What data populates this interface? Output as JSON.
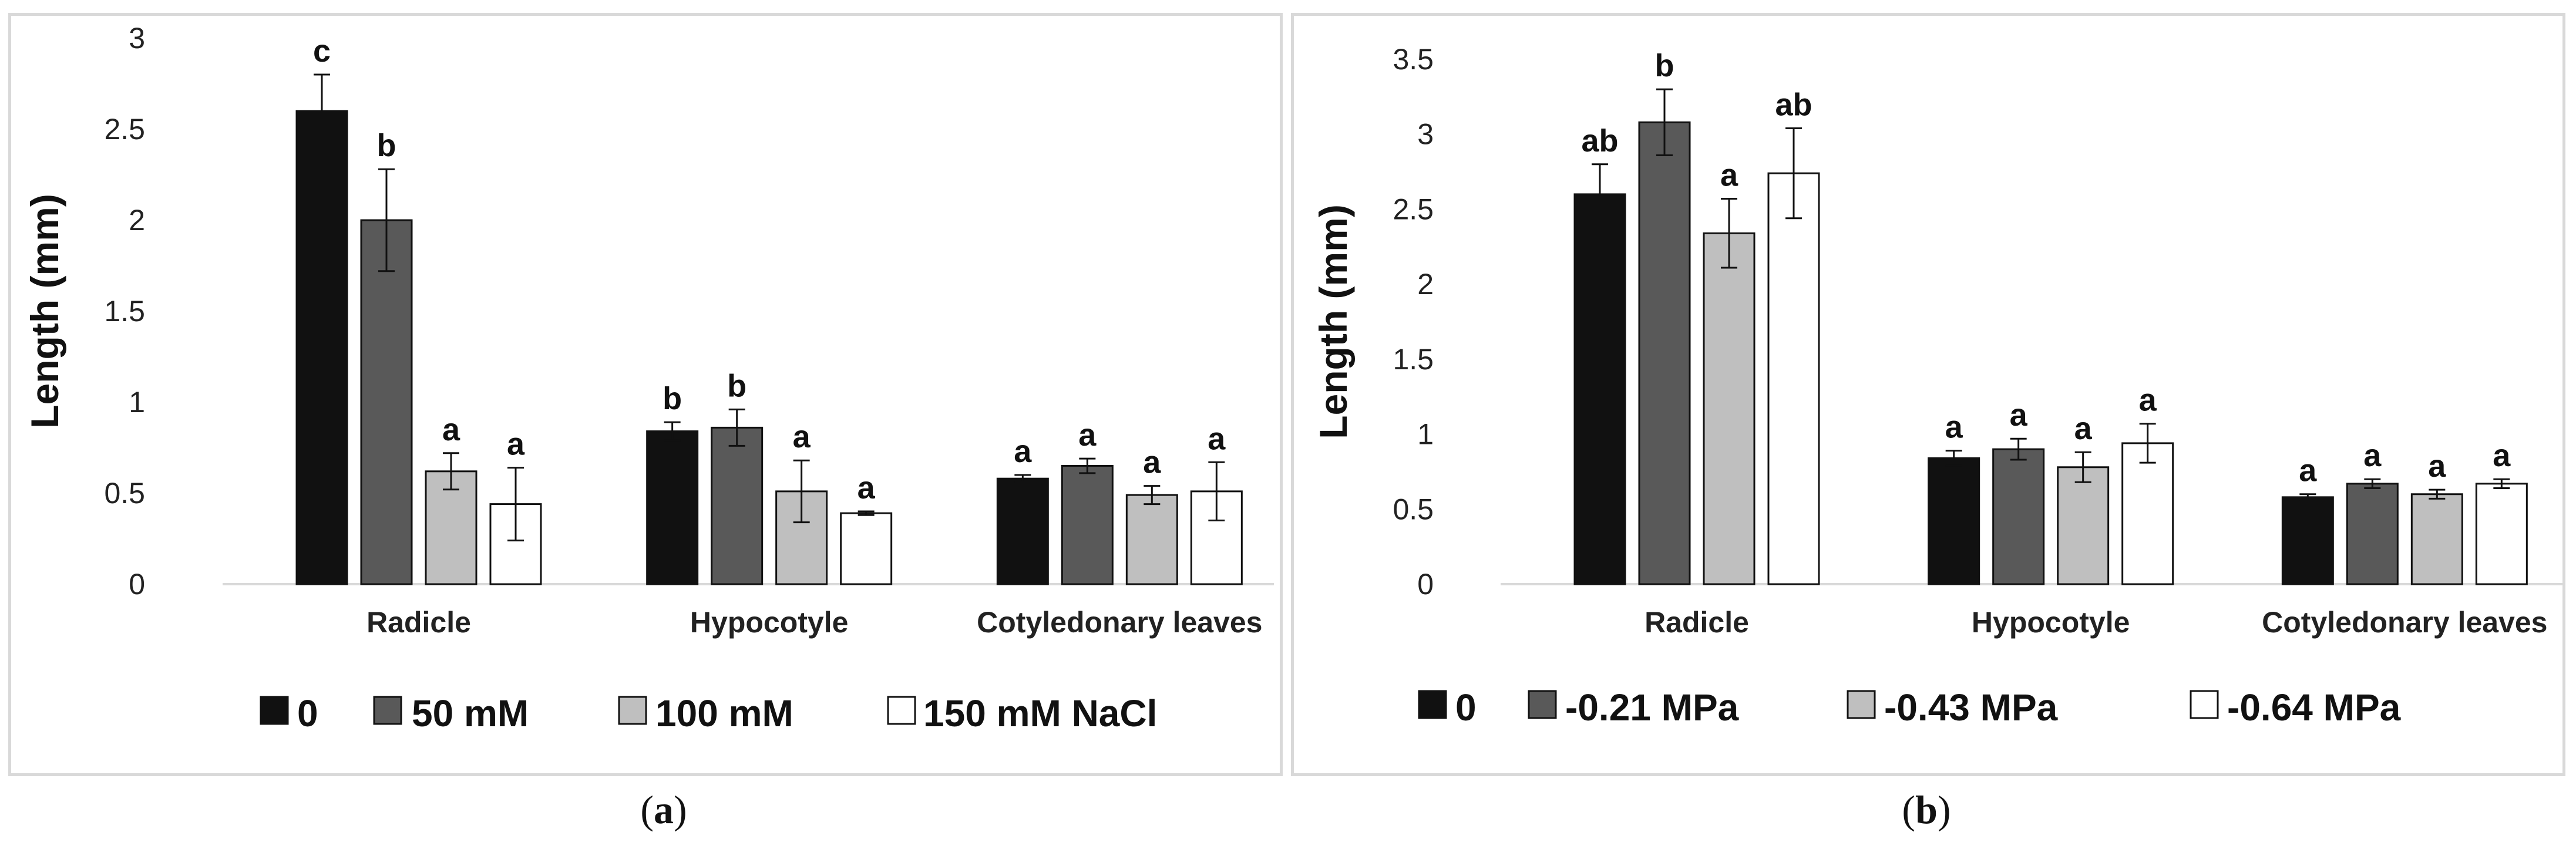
{
  "chart_data": [
    {
      "type": "bar",
      "panel": "a",
      "title": "",
      "xlabel": "",
      "ylabel": "Length (mm)",
      "ylim": [
        0,
        3
      ],
      "yticks": [
        "0",
        "0.5",
        "1",
        "1.5",
        "2",
        "2.5",
        "3"
      ],
      "categories": [
        "Radicle",
        "Hypocotyle",
        "Cotyledonary leaves"
      ],
      "legend_position": "bottom",
      "series": [
        {
          "name": "0",
          "color": "#111111",
          "values": [
            2.6,
            0.84,
            0.58
          ],
          "errors": [
            0.2,
            0.05,
            0.02
          ],
          "labels": [
            "c",
            "b",
            "a"
          ]
        },
        {
          "name": "50 mM",
          "color": "#595959",
          "values": [
            2.0,
            0.86,
            0.65
          ],
          "errors": [
            0.28,
            0.1,
            0.04
          ],
          "labels": [
            "b",
            "b",
            "a"
          ]
        },
        {
          "name": "100 mM",
          "color": "#bfbfbf",
          "values": [
            0.62,
            0.51,
            0.49
          ],
          "errors": [
            0.1,
            0.17,
            0.05
          ],
          "labels": [
            "a",
            "a",
            "a"
          ]
        },
        {
          "name": "150 mM NaCl",
          "color": "#ffffff",
          "values": [
            0.44,
            0.39,
            0.51
          ],
          "errors": [
            0.2,
            0.01,
            0.16
          ],
          "labels": [
            "a",
            "a",
            "a"
          ]
        }
      ]
    },
    {
      "type": "bar",
      "panel": "b",
      "title": "",
      "xlabel": "",
      "ylabel": "Length (mm)",
      "ylim": [
        0,
        3.5
      ],
      "yticks": [
        "0",
        "0.5",
        "1",
        "1.5",
        "2",
        "2.5",
        "3",
        "3.5"
      ],
      "categories": [
        "Radicle",
        "Hypocotyle",
        "Cotyledonary leaves"
      ],
      "legend_position": "bottom",
      "series": [
        {
          "name": "0",
          "color": "#111111",
          "values": [
            2.6,
            0.84,
            0.58
          ],
          "errors": [
            0.2,
            0.05,
            0.02
          ],
          "labels": [
            "ab",
            "a",
            "a"
          ]
        },
        {
          "name": "-0.21 MPa",
          "color": "#595959",
          "values": [
            3.08,
            0.9,
            0.67
          ],
          "errors": [
            0.22,
            0.07,
            0.03
          ],
          "labels": [
            "b",
            "a",
            "a"
          ]
        },
        {
          "name": "-0.43 MPa",
          "color": "#bfbfbf",
          "values": [
            2.34,
            0.78,
            0.6
          ],
          "errors": [
            0.23,
            0.1,
            0.03
          ],
          "labels": [
            "a",
            "a",
            "a"
          ]
        },
        {
          "name": "-0.64 MPa",
          "color": "#ffffff",
          "values": [
            2.74,
            0.94,
            0.67
          ],
          "errors": [
            0.3,
            0.13,
            0.03
          ],
          "labels": [
            "ab",
            "a",
            "a"
          ]
        }
      ]
    }
  ],
  "captions": [
    {
      "letter": "a"
    },
    {
      "letter": "b"
    }
  ]
}
